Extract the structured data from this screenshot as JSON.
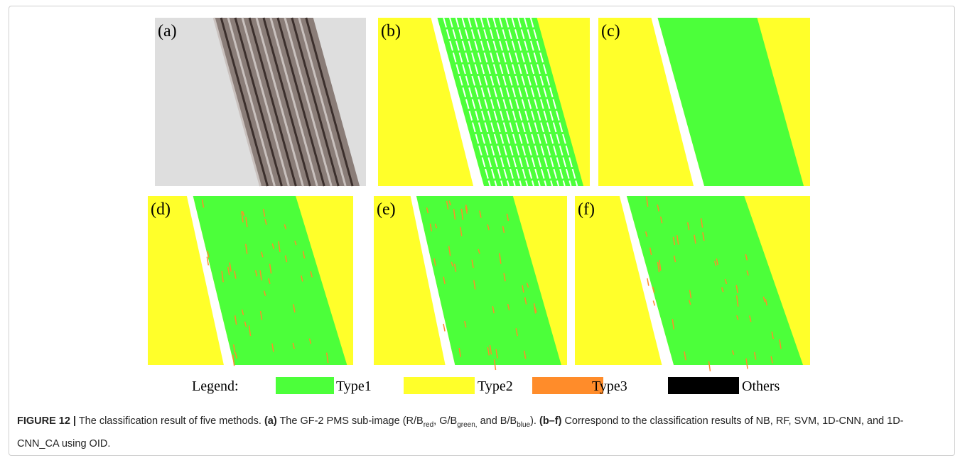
{
  "panels": [
    {
      "label": "(a)"
    },
    {
      "label": "(b)"
    },
    {
      "label": "(c)"
    },
    {
      "label": "(d)"
    },
    {
      "label": "(e)"
    },
    {
      "label": "(f)"
    }
  ],
  "legend": {
    "title": "Legend:",
    "items": [
      {
        "label": "Type1",
        "color": "#4cff3a"
      },
      {
        "label": "Type2",
        "color": "#ffff2a"
      },
      {
        "label": "Type3",
        "color": "#ff8c2a"
      },
      {
        "label": "Others",
        "color": "#000000"
      }
    ]
  },
  "caption": {
    "figure_label": "FIGURE 12 |",
    "text1": "The classification result of five methods.",
    "ref_a": "(a)",
    "text2": "The GF-2 PMS sub-image (R/B",
    "sub_red": "red",
    "text3": ", G/B",
    "sub_green": "green,",
    "text4": " and B/B",
    "sub_blue": "blue",
    "text5": ").",
    "ref_bf": "(b–f)",
    "text6": "Correspond to the classification results of NB, RF, SVM, 1D-CNN, and 1D-CNN_CA using OID."
  }
}
